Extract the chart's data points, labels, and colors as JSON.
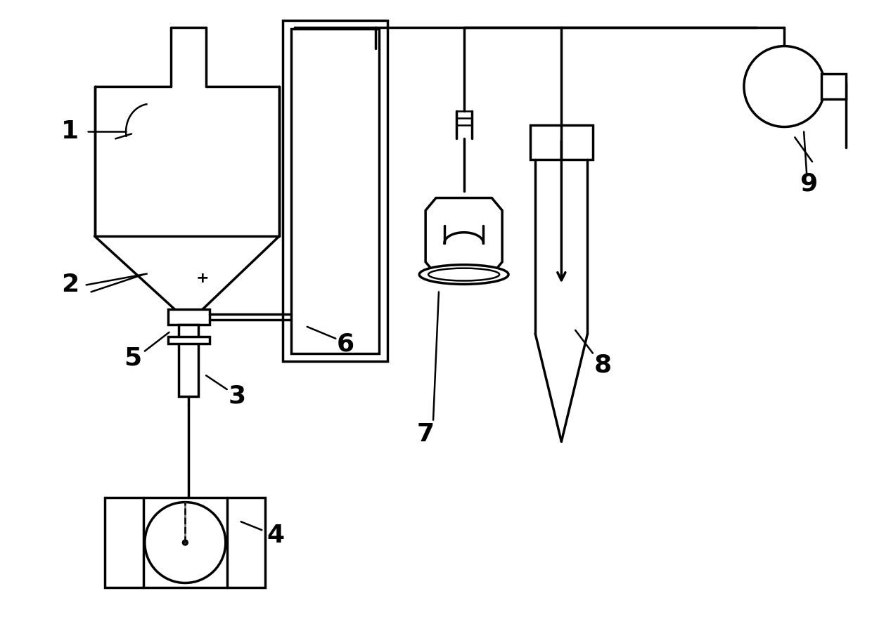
{
  "bg_color": "#ffffff",
  "line_color": "#000000",
  "lw": 2.5,
  "lw_thin": 1.8,
  "fig_width": 12.4,
  "fig_height": 9.05
}
